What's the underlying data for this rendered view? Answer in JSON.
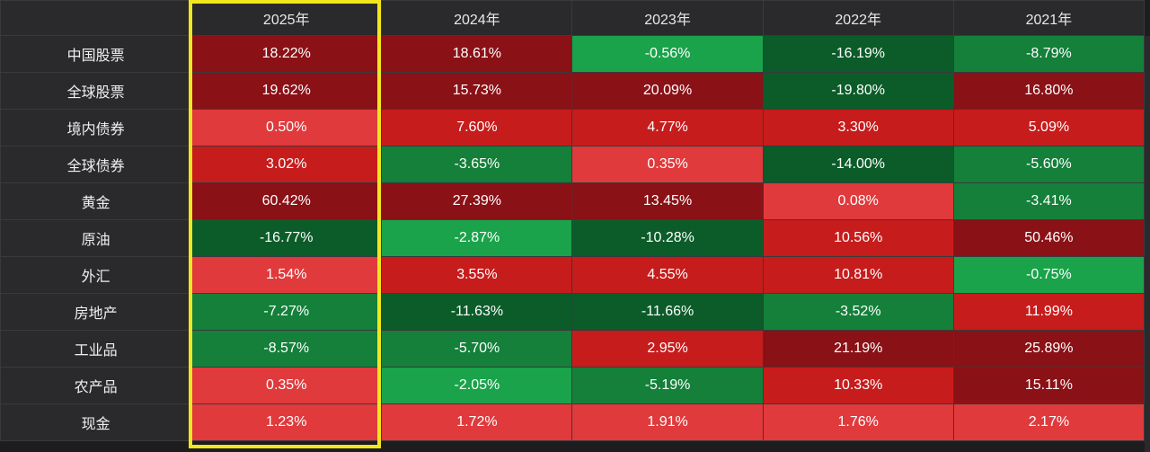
{
  "chart_data": {
    "type": "heatmap",
    "title": "",
    "columns": [
      "2025年",
      "2024年",
      "2023年",
      "2022年",
      "2021年"
    ],
    "rows": [
      {
        "name": "中国股票",
        "values": [
          "18.22%",
          "18.61%",
          "-0.56%",
          "-16.19%",
          "-8.79%"
        ]
      },
      {
        "name": "全球股票",
        "values": [
          "19.62%",
          "15.73%",
          "20.09%",
          "-19.80%",
          "16.80%"
        ]
      },
      {
        "name": "境内债券",
        "values": [
          "0.50%",
          "7.60%",
          "4.77%",
          "3.30%",
          "5.09%"
        ]
      },
      {
        "name": "全球债券",
        "values": [
          "3.02%",
          "-3.65%",
          "0.35%",
          "-14.00%",
          "-5.60%"
        ]
      },
      {
        "name": "黄金",
        "values": [
          "60.42%",
          "27.39%",
          "13.45%",
          "0.08%",
          "-3.41%"
        ]
      },
      {
        "name": "原油",
        "values": [
          "-16.77%",
          "-2.87%",
          "-10.28%",
          "10.56%",
          "50.46%"
        ]
      },
      {
        "name": "外汇",
        "values": [
          "1.54%",
          "3.55%",
          "4.55%",
          "10.81%",
          "-0.75%"
        ]
      },
      {
        "name": "房地产",
        "values": [
          "-7.27%",
          "-11.63%",
          "-11.66%",
          "-3.52%",
          "11.99%"
        ]
      },
      {
        "name": "工业品",
        "values": [
          "-8.57%",
          "-5.70%",
          "2.95%",
          "21.19%",
          "25.89%"
        ]
      },
      {
        "name": "农产品",
        "values": [
          "0.35%",
          "-2.05%",
          "-5.19%",
          "10.33%",
          "15.11%"
        ]
      },
      {
        "name": "现金",
        "values": [
          "1.23%",
          "1.72%",
          "1.91%",
          "1.76%",
          "2.17%"
        ]
      }
    ],
    "highlighted_column": "2025年",
    "colors": {
      "positive_light": "#e03a3c",
      "positive_mid": "#c71c1c",
      "positive_dark": "#8a1116",
      "negative_light": "#1aa34a",
      "negative_mid": "#14803a",
      "negative_dark": "#0b5c29",
      "highlight_border": "#f2e61e",
      "header_bg": "#2a2a2c",
      "grid": "#3a3a3c"
    }
  }
}
